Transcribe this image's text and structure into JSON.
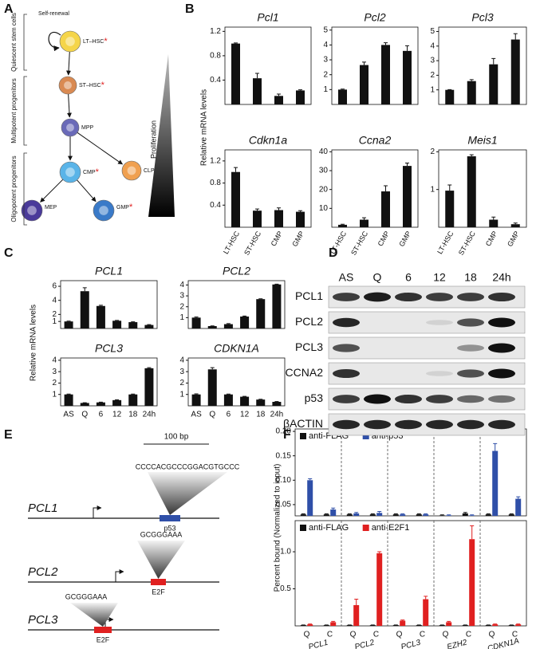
{
  "panel_labels": [
    "A",
    "B",
    "C",
    "D",
    "E",
    "F"
  ],
  "diagram_a": {
    "self_renewal": "Self-renewal",
    "stages": [
      "Quiescent stem cells",
      "Multipotent progenitors",
      "Oligopotent progenitors"
    ],
    "gradient_label": "Proliferation",
    "nodes": [
      {
        "label": "LT–HSC",
        "mark": "*",
        "color": "#f5d54a"
      },
      {
        "label": "ST–HSC",
        "mark": "*",
        "color": "#d98a52"
      },
      {
        "label": "MPP",
        "color": "#6a6ab8"
      },
      {
        "label": "CMP",
        "mark": "*",
        "color": "#5ab4e8"
      },
      {
        "label": "CLP",
        "color": "#f0a050"
      },
      {
        "label": "MEP",
        "color": "#4a3a9a"
      },
      {
        "label": "GMP",
        "mark": "*",
        "color": "#3a7ac8"
      }
    ]
  },
  "panel_b_ylabel": "Relative mRNA levels",
  "panel_c_ylabel": "Relative mRNA levels",
  "panel_f_ylabel": "Percent bound (Normalized to input)",
  "chart_data": [
    {
      "type": "bar",
      "title": "Pcl1",
      "categories": [
        null,
        null,
        null,
        null
      ],
      "values": [
        1.0,
        0.43,
        0.14,
        0.23
      ],
      "errors": [
        0.01,
        0.08,
        0.03,
        0.01
      ],
      "color": "#111111",
      "ylim": [
        0,
        1.27
      ],
      "yticks": [
        0.4,
        0.8,
        1.2
      ]
    },
    {
      "type": "bar",
      "title": "Pcl2",
      "categories": [
        null,
        null,
        null,
        null
      ],
      "values": [
        1.0,
        2.65,
        4.0,
        3.6
      ],
      "errors": [
        0.03,
        0.2,
        0.15,
        0.35
      ],
      "color": "#111111",
      "ylim": [
        0,
        5.2
      ],
      "yticks": [
        1,
        2,
        3,
        4,
        5
      ]
    },
    {
      "type": "bar",
      "title": "Pcl3",
      "categories": [
        null,
        null,
        null,
        null
      ],
      "values": [
        1.0,
        1.6,
        2.75,
        4.45
      ],
      "errors": [
        0.02,
        0.1,
        0.4,
        0.4
      ],
      "color": "#111111",
      "ylim": [
        0,
        5.3
      ],
      "yticks": [
        1,
        2,
        3,
        4,
        5
      ]
    },
    {
      "type": "bar",
      "title": "Cdkn1a",
      "categories": [
        "LT-HSC",
        "ST-HSC",
        "CMP",
        "GMP"
      ],
      "values": [
        1.0,
        0.3,
        0.31,
        0.28
      ],
      "errors": [
        0.08,
        0.03,
        0.04,
        0.02
      ],
      "color": "#111111",
      "ylim": [
        0,
        1.4
      ],
      "yticks": [
        0.4,
        0.8,
        1.2
      ]
    },
    {
      "type": "bar",
      "title": "Ccna2",
      "categories": [
        "LT-HSC",
        "ST-HSC",
        "CMP",
        "GMP"
      ],
      "values": [
        1.3,
        4,
        19,
        32.5
      ],
      "errors": [
        0.3,
        1,
        3,
        1.5
      ],
      "color": "#111111",
      "ylim": [
        0,
        41
      ],
      "yticks": [
        10,
        20,
        30,
        40
      ]
    },
    {
      "type": "bar",
      "title": "Meis1",
      "categories": [
        "LT-HSC",
        "ST-HSC",
        "CMP",
        "GMP"
      ],
      "values": [
        0.97,
        1.88,
        0.2,
        0.08
      ],
      "errors": [
        0.15,
        0.04,
        0.07,
        0.03
      ],
      "color": "#111111",
      "ylim": [
        0,
        2.05
      ],
      "yticks": [
        1,
        2
      ]
    },
    {
      "type": "bar",
      "title": "PCL1",
      "categories": [
        null,
        null,
        null,
        null,
        null,
        null
      ],
      "values": [
        1.0,
        5.3,
        3.2,
        1.1,
        0.9,
        0.5
      ],
      "errors": [
        0.05,
        0.5,
        0.1,
        0.05,
        0.05,
        0.05
      ],
      "color": "#111111",
      "ylim": [
        0,
        6.8
      ],
      "yticks": [
        1,
        2,
        4,
        6
      ]
    },
    {
      "type": "bar",
      "title": "PCL2",
      "categories": [
        null,
        null,
        null,
        null,
        null,
        null
      ],
      "values": [
        1.0,
        0.22,
        0.4,
        1.1,
        2.7,
        4.05
      ],
      "errors": [
        0.05,
        0.02,
        0.05,
        0.05,
        0.03,
        0.03
      ],
      "color": "#111111",
      "ylim": [
        0,
        4.4
      ],
      "yticks": [
        1,
        2,
        3,
        4
      ]
    },
    {
      "type": "bar",
      "title": "PCL3",
      "categories": [
        "AS",
        "Q",
        "6",
        "12",
        "18",
        "24h"
      ],
      "values": [
        1.0,
        0.25,
        0.3,
        0.5,
        1.0,
        3.3
      ],
      "errors": [
        0.03,
        0.02,
        0.02,
        0.03,
        0.03,
        0.05
      ],
      "color": "#111111",
      "ylim": [
        0,
        4.2
      ],
      "yticks": [
        1,
        2,
        3,
        4
      ]
    },
    {
      "type": "bar",
      "title": "CDKN1A",
      "categories": [
        "AS",
        "Q",
        "6",
        "12",
        "18",
        "24h"
      ],
      "values": [
        1.0,
        3.2,
        1.0,
        0.8,
        0.55,
        0.35
      ],
      "errors": [
        0.05,
        0.15,
        0.03,
        0.03,
        0.03,
        0.03
      ],
      "color": "#111111",
      "ylim": [
        0,
        4.2
      ],
      "yticks": [
        1,
        2,
        3,
        4
      ]
    },
    {
      "type": "bar",
      "categories": [
        null,
        null,
        null,
        null,
        null,
        null,
        null,
        null,
        null,
        null
      ],
      "separators": true,
      "legend": "upper left",
      "series": [
        {
          "name": "anti-FLAG",
          "color": "#111111",
          "values": [
            0.03,
            0.03,
            0.03,
            0.03,
            0.03,
            0.03,
            0.028,
            0.032,
            0.03,
            0.03
          ],
          "errors": [
            0.001,
            0.001,
            0.001,
            0.001,
            0.001,
            0.001,
            0.001,
            0.002,
            0.001,
            0.001
          ]
        },
        {
          "name": "anti-p53",
          "color": "#2f4fa8",
          "values": [
            0.1,
            0.04,
            0.032,
            0.033,
            0.03,
            0.03,
            0.028,
            0.028,
            0.16,
            0.062
          ],
          "errors": [
            0.003,
            0.003,
            0.002,
            0.003,
            0.001,
            0.001,
            0.001,
            0.001,
            0.015,
            0.004
          ]
        }
      ],
      "ylim": [
        0.027,
        0.205
      ],
      "yticks": [
        0.05,
        {
          "value": 0.1,
          "label": "0.10"
        },
        0.15,
        {
          "value": 0.2,
          "label": "0.20"
        }
      ]
    },
    {
      "type": "bar",
      "categories": [
        "Q",
        "C",
        "Q",
        "C",
        "Q",
        "C",
        "Q",
        "C",
        "Q",
        "C"
      ],
      "groups": [
        "PCL1",
        "PCL2",
        "PCL3",
        "EZH2",
        "CDKN1A"
      ],
      "separators": true,
      "legend": "upper left",
      "series": [
        {
          "name": "anti-FLAG",
          "color": "#111111",
          "values": [
            0.01,
            0.01,
            0.01,
            0.01,
            0.01,
            0.01,
            0.01,
            0.01,
            0.01,
            0.01
          ],
          "errors": [
            0.002,
            0.002,
            0.002,
            0.002,
            0.002,
            0.002,
            0.002,
            0.002,
            0.002,
            0.002
          ]
        },
        {
          "name": "anti-E2F1",
          "color": "#e02020",
          "values": [
            0.02,
            0.05,
            0.28,
            0.98,
            0.07,
            0.36,
            0.05,
            1.17,
            0.02,
            0.02
          ],
          "errors": [
            0.005,
            0.01,
            0.08,
            0.02,
            0.01,
            0.04,
            0.01,
            0.18,
            0.005,
            0.005
          ]
        }
      ],
      "ylim": [
        0,
        1.42
      ],
      "yticks": [
        0.5,
        {
          "value": 1,
          "label": "1.0"
        }
      ]
    }
  ],
  "blot": {
    "lanes": [
      "AS",
      "Q",
      "6",
      "12",
      "18",
      "24h"
    ],
    "rows": [
      "PCL1",
      "PCL2",
      "PCL3",
      "CCNA2",
      "p53",
      "βACTIN"
    ]
  },
  "diagram_e": {
    "scale": "100 bp",
    "genes": [
      {
        "name": "PCL1",
        "sequence": "CCCCACGCCCGGACGTGCCC",
        "site": "p53",
        "color": "#2f4fa8"
      },
      {
        "name": "PCL2",
        "sequence": "GCGGGAAA",
        "site": "E2F",
        "color": "#e02020"
      },
      {
        "name": "PCL3",
        "sequence": "GCGGGAAA",
        "site": "E2F",
        "color": "#e02020"
      }
    ]
  }
}
